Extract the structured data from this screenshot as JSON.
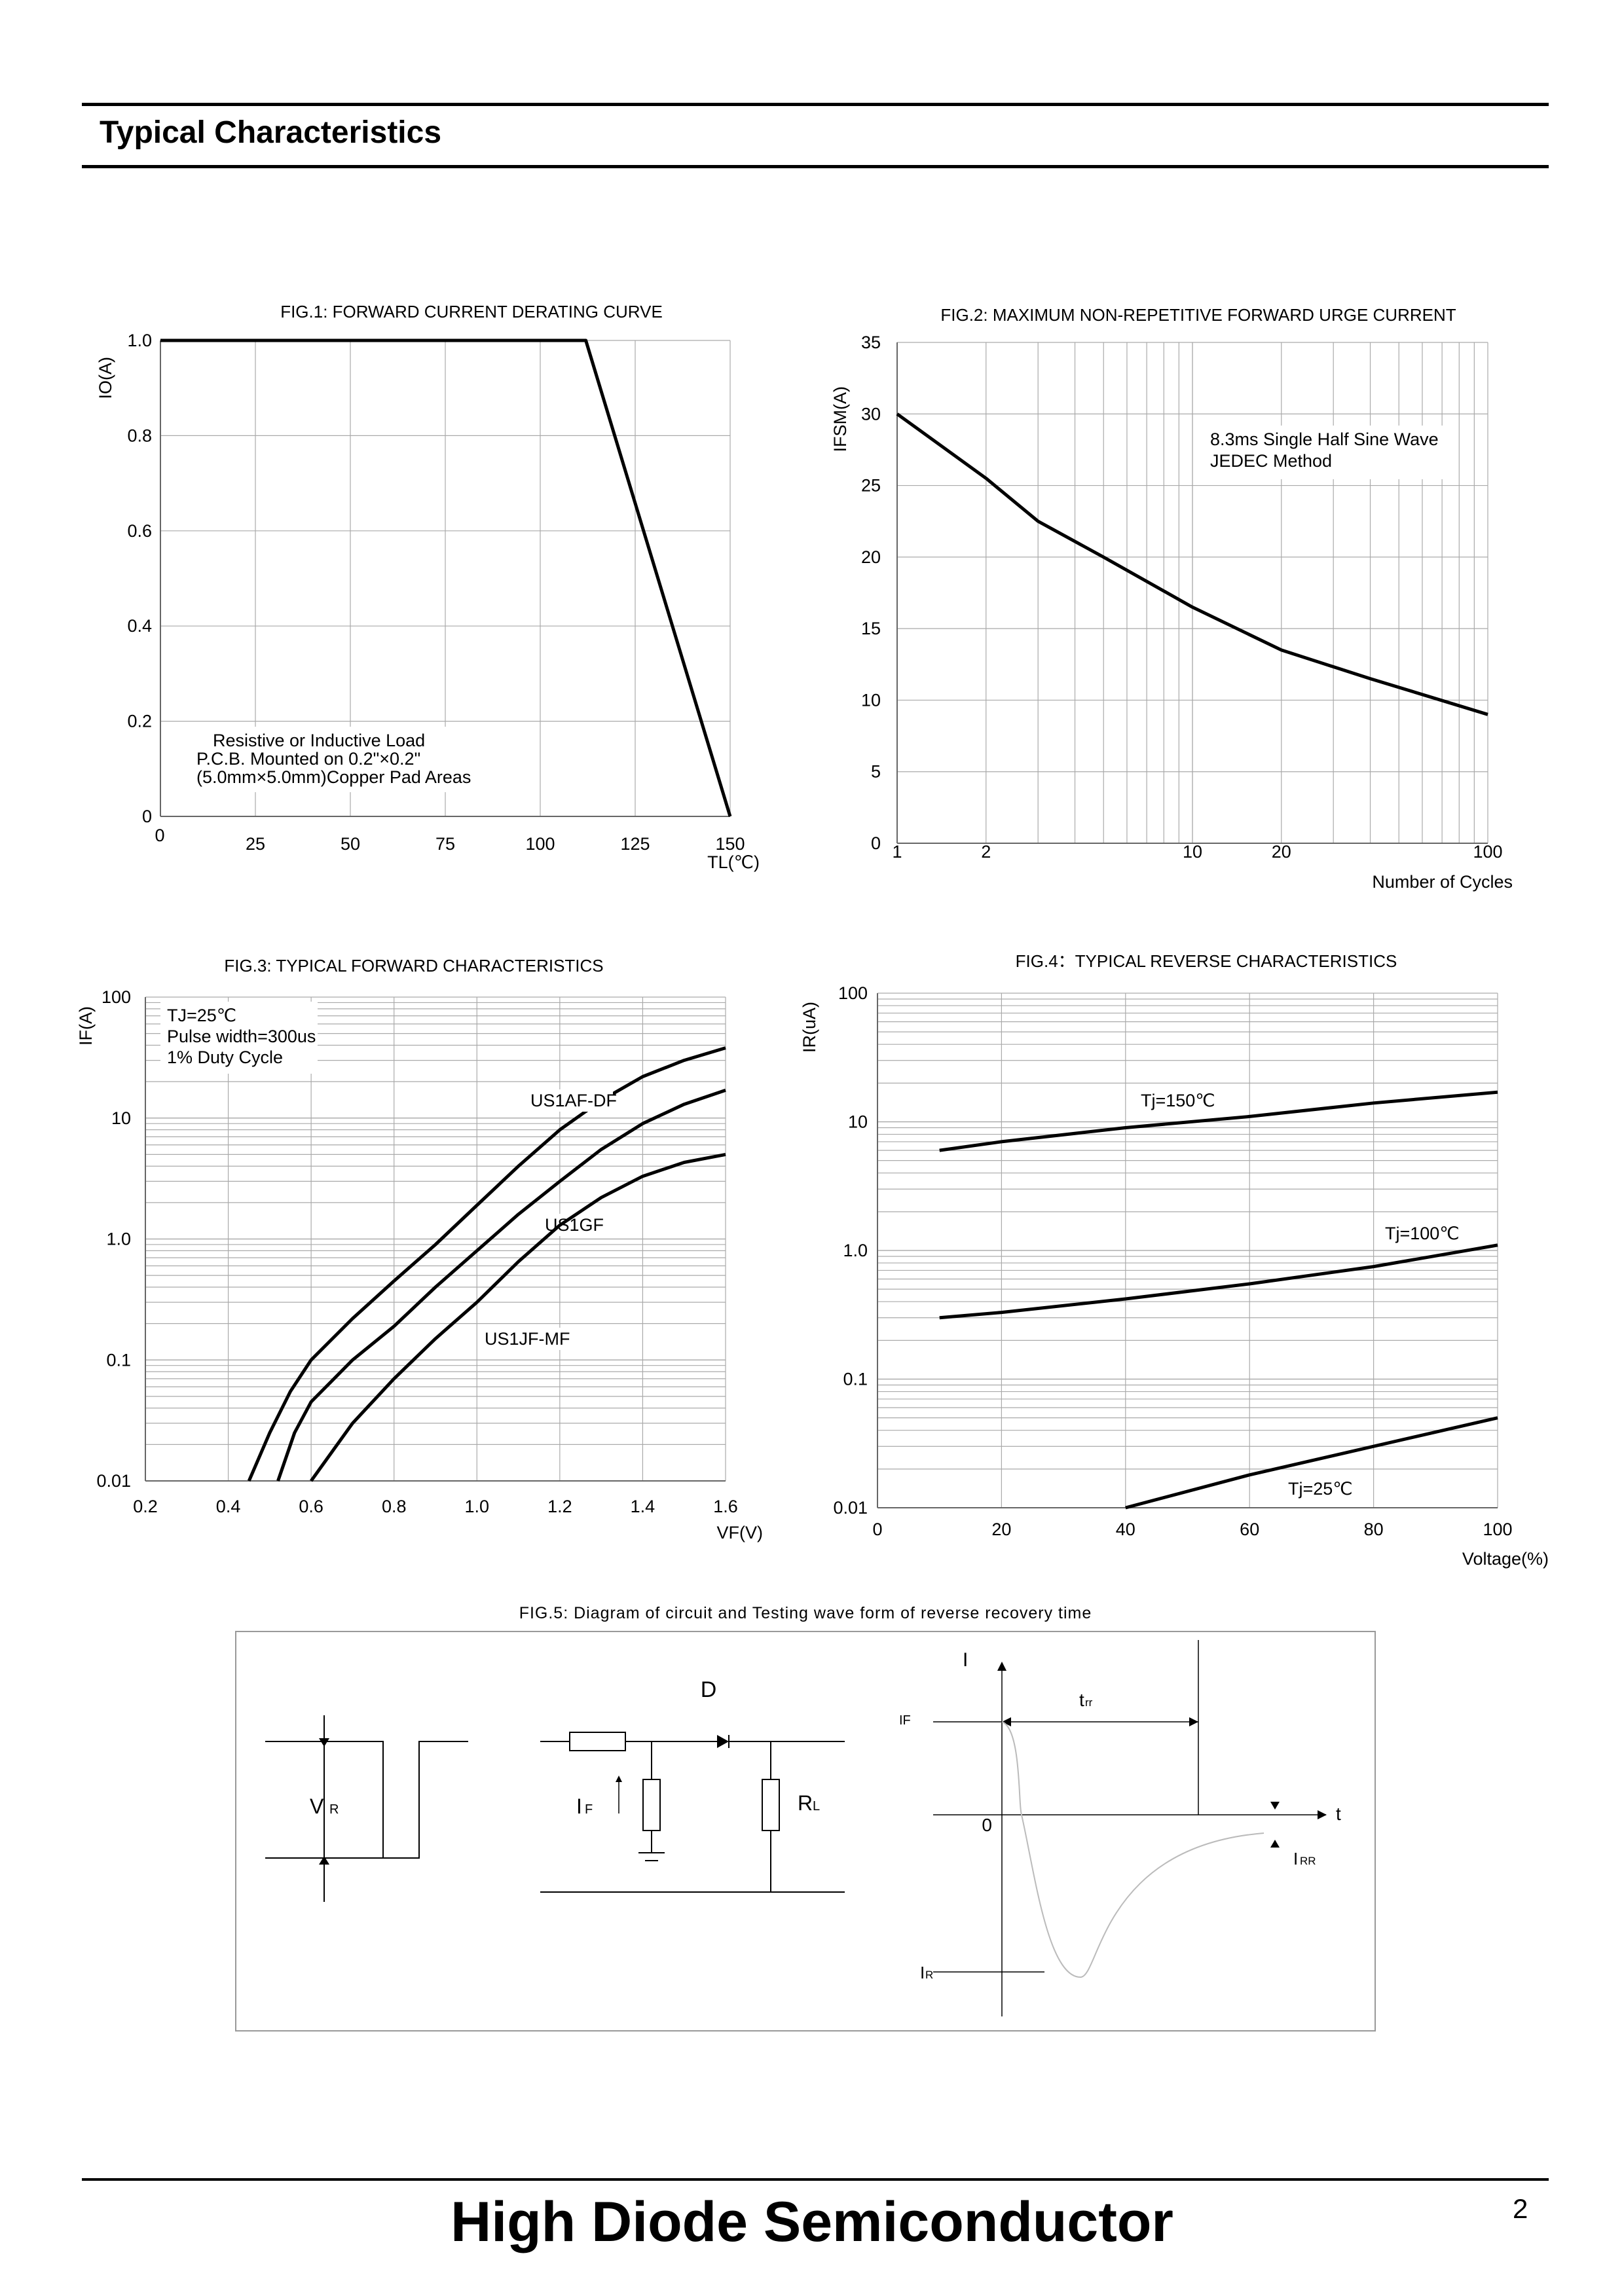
{
  "header": {
    "title": "Typical Characteristics"
  },
  "footer": {
    "company": "High Diode Semiconductor",
    "page": "2"
  },
  "chart_data": [
    {
      "type": "line",
      "title": "FIG.1: FORWARD CURRENT  DERATING CURVE",
      "xlabel": "TL(℃)",
      "ylabel": "IO(A)",
      "xlim": [
        0,
        150
      ],
      "ylim": [
        0,
        1.0
      ],
      "x_ticks": [
        "0",
        "25",
        "50",
        "75",
        "100",
        "125",
        "150"
      ],
      "y_ticks": [
        "0",
        "0.2",
        "0.4",
        "0.6",
        "0.8",
        "1.0"
      ],
      "grid": true,
      "annotation": [
        "Resistive or Inductive Load",
        "P.C.B. Mounted on 0.2\"×0.2\"",
        "(5.0mm×5.0mm)Copper Pad Areas"
      ],
      "series": [
        {
          "x": [
            0,
            112,
            150
          ],
          "y": [
            1.0,
            1.0,
            0
          ]
        }
      ]
    },
    {
      "type": "line",
      "title": "FIG.2: MAXIMUM NON-REPETITIVE FORWARD URGE CURRENT",
      "xlabel": "Number of Cycles",
      "ylabel": "IFSM(A)",
      "xscale": "log",
      "xlim": [
        1,
        100
      ],
      "ylim": [
        0,
        35
      ],
      "x_ticks": [
        "1",
        "2",
        "10",
        "20",
        "100"
      ],
      "y_ticks": [
        "0",
        "5",
        "10",
        "15",
        "20",
        "25",
        "30",
        "35"
      ],
      "grid": true,
      "annotation": [
        "8.3ms Single Half Sine Wave",
        "JEDEC Method"
      ],
      "series": [
        {
          "x": [
            1,
            2,
            3,
            5,
            10,
            20,
            40,
            100
          ],
          "y": [
            30,
            25.5,
            22.5,
            20,
            16.5,
            13.5,
            11.5,
            9
          ]
        }
      ]
    },
    {
      "type": "line",
      "title": "FIG.3: TYPICAL FORWARD CHARACTERISTICS",
      "xlabel": "VF(V)",
      "ylabel": "IF(A)",
      "yscale": "log",
      "xlim": [
        0.2,
        1.6
      ],
      "ylim": [
        0.01,
        100
      ],
      "x_ticks": [
        "0.2",
        "0.4",
        "0.6",
        "0.8",
        "1.0",
        "1.2",
        "1.4",
        "1.6"
      ],
      "y_ticks": [
        "0.01",
        "0.1",
        "1.0",
        "10",
        "100"
      ],
      "grid": true,
      "annotation": [
        "TJ=25℃",
        "Pulse width=300us",
        "1% Duty Cycle"
      ],
      "series": [
        {
          "name": "US1AF-DF",
          "x": [
            0.45,
            0.5,
            0.55,
            0.6,
            0.7,
            0.8,
            0.9,
            1.0,
            1.1,
            1.2,
            1.3,
            1.4,
            1.5,
            1.6
          ],
          "y": [
            0.01,
            0.025,
            0.055,
            0.1,
            0.22,
            0.45,
            0.9,
            1.9,
            4,
            8,
            14,
            22,
            30,
            38
          ]
        },
        {
          "name": "US1GF",
          "x": [
            0.52,
            0.56,
            0.6,
            0.7,
            0.8,
            0.9,
            1.0,
            1.1,
            1.2,
            1.3,
            1.4,
            1.5,
            1.6
          ],
          "y": [
            0.01,
            0.025,
            0.045,
            0.1,
            0.19,
            0.4,
            0.8,
            1.6,
            3,
            5.5,
            9,
            13,
            17
          ]
        },
        {
          "name": "US1JF-MF",
          "x": [
            0.6,
            0.7,
            0.8,
            0.9,
            1.0,
            1.1,
            1.2,
            1.3,
            1.4,
            1.5,
            1.6
          ],
          "y": [
            0.01,
            0.03,
            0.07,
            0.15,
            0.3,
            0.65,
            1.3,
            2.2,
            3.3,
            4.3,
            5
          ]
        }
      ]
    },
    {
      "type": "line",
      "title": "FIG.4：TYPICAL REVERSE CHARACTERISTICS",
      "xlabel": "Voltage(%)",
      "ylabel": "IR(uA)",
      "yscale": "log",
      "xlim": [
        0,
        100
      ],
      "ylim": [
        0.01,
        100
      ],
      "x_ticks": [
        "0",
        "20",
        "40",
        "60",
        "80",
        "100"
      ],
      "y_ticks": [
        "0.01",
        "0.1",
        "1.0",
        "10",
        "100"
      ],
      "grid": true,
      "series": [
        {
          "name": "Tj=150℃",
          "x": [
            10,
            20,
            40,
            60,
            80,
            100
          ],
          "y": [
            6,
            7,
            9,
            11,
            14,
            17
          ]
        },
        {
          "name": "Tj=100℃",
          "x": [
            10,
            20,
            40,
            60,
            80,
            100
          ],
          "y": [
            0.3,
            0.33,
            0.42,
            0.55,
            0.75,
            1.1
          ]
        },
        {
          "name": "Tj=25℃",
          "x": [
            40,
            60,
            80,
            100
          ],
          "y": [
            0.01,
            0.018,
            0.03,
            0.05
          ]
        }
      ]
    }
  ],
  "fig5": {
    "title": "FIG.5: Diagram of circuit and Testing wave form of reverse recovery time",
    "labels": {
      "vr": "V",
      "vr_sub": "R",
      "d": "D",
      "if_main": "I",
      "if_sub": "F",
      "rl_main": "R",
      "rl_sub": "L",
      "i_axis": "I",
      "if_wave": "IF",
      "trr_main": "t",
      "trr_sub": "rr",
      "t_axis": "t",
      "zero": "0",
      "irr_main": "I",
      "irr_sub": "RR",
      "ir_main": "I",
      "ir_sub": "R"
    }
  }
}
